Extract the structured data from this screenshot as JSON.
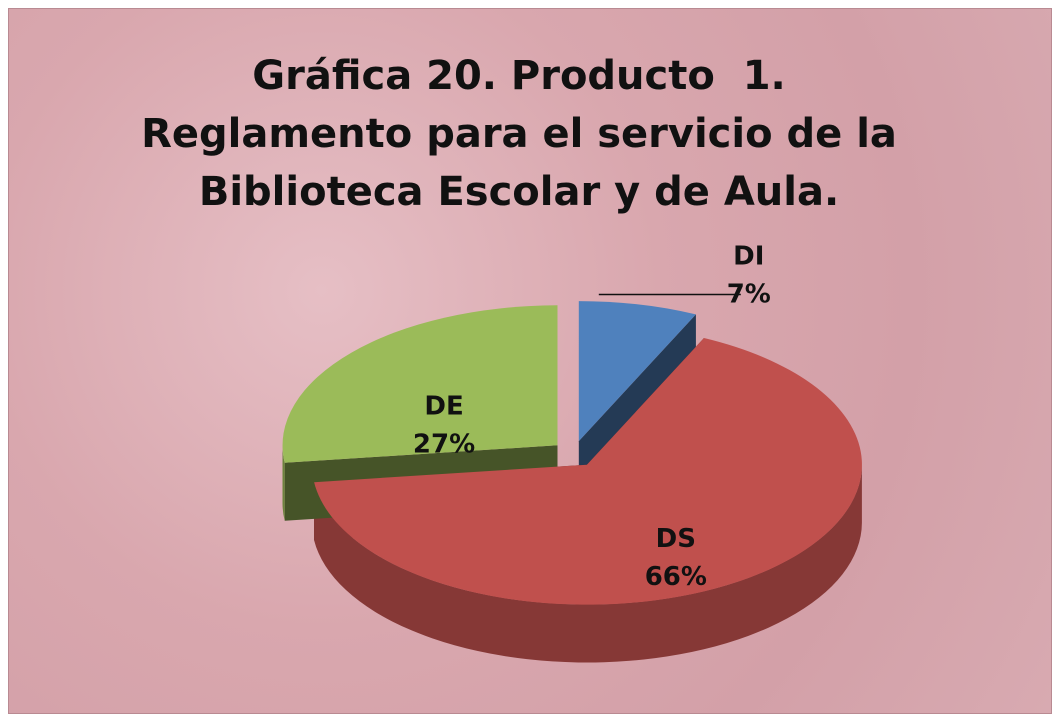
{
  "chart_data": {
    "type": "pie3d",
    "title": "Gráfica 20. Producto  1. Reglamento para el servicio de la Biblioteca Escolar y de Aula.",
    "categories": [
      "DI",
      "DS",
      "DE"
    ],
    "values": [
      7,
      66,
      27
    ],
    "value_labels": [
      "7%",
      "66%",
      "27%"
    ],
    "colors": [
      "#4f81bd",
      "#c0504d",
      "#9bbb59"
    ]
  }
}
